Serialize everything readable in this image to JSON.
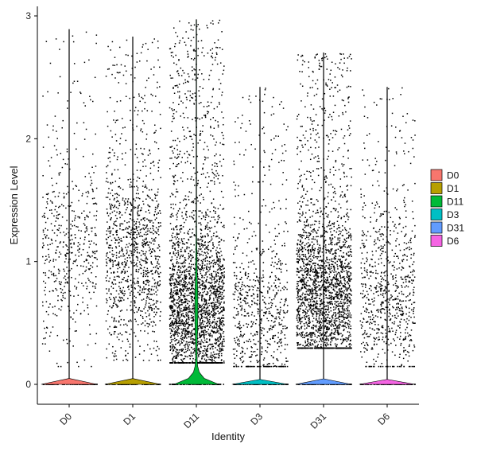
{
  "chart_data": {
    "type": "violin",
    "xlabel": "Identity",
    "ylabel": "Expression Level",
    "ylim": [
      -0.15,
      3.05
    ],
    "yticks": [
      0,
      1,
      2,
      3
    ],
    "categories": [
      "D0",
      "D1",
      "D11",
      "D3",
      "D31",
      "D6"
    ],
    "legend_position": "right",
    "grid": false,
    "series": [
      {
        "name": "D0",
        "color": "#F8766D",
        "max": 2.89,
        "nonzero_points": 520,
        "nonzero_min": 0.15,
        "nonzero_median": 1.15
      },
      {
        "name": "D1",
        "color": "#B79F00",
        "max": 2.83,
        "nonzero_points": 1150,
        "nonzero_min": 0.2,
        "nonzero_median": 1.05
      },
      {
        "name": "D11",
        "color": "#00BA38",
        "max": 2.97,
        "nonzero_points": 2600,
        "nonzero_min": 0.18,
        "nonzero_median": 0.62
      },
      {
        "name": "D3",
        "color": "#00BFC4",
        "max": 2.42,
        "nonzero_points": 700,
        "nonzero_min": 0.15,
        "nonzero_median": 0.6
      },
      {
        "name": "D31",
        "color": "#619CFF",
        "max": 2.7,
        "nonzero_points": 2300,
        "nonzero_min": 0.3,
        "nonzero_median": 0.72
      },
      {
        "name": "D6",
        "color": "#F564E3",
        "max": 2.42,
        "nonzero_points": 780,
        "nonzero_min": 0.15,
        "nonzero_median": 0.7
      }
    ]
  }
}
